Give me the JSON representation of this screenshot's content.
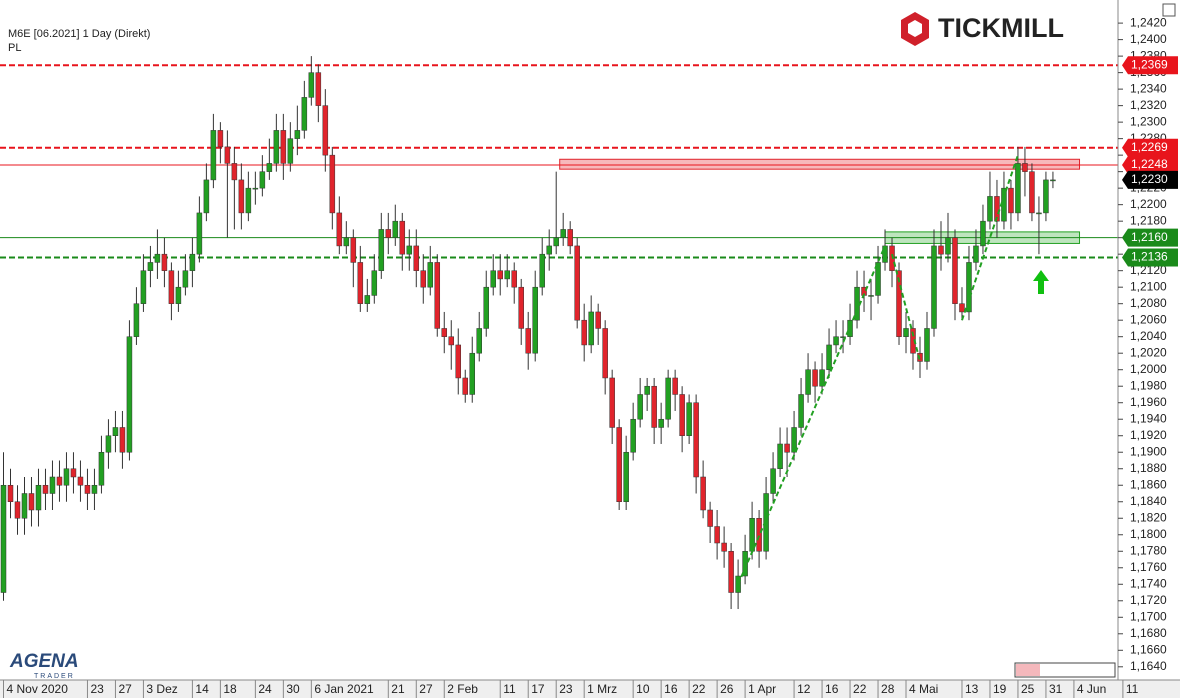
{
  "chart_data": {
    "type": "candlestick",
    "title": "M6E [06.2021] 1 Day (Direkt)",
    "subtitle": "PL",
    "brand": "TICKMILL",
    "logo": "AGENA",
    "logo_sub": "TRADER",
    "up_color": "#22a022",
    "down_color": "#e0242c",
    "xlim": [
      -0.5,
      159.3
    ],
    "ylim": [
      1.1624,
      1.2448
    ],
    "xticks": [
      {
        "value": 0,
        "label": "4 Nov 2020"
      },
      {
        "value": 12,
        "label": "23"
      },
      {
        "value": 16,
        "label": "27"
      },
      {
        "value": 20,
        "label": "3 Dez"
      },
      {
        "value": 27,
        "label": "14"
      },
      {
        "value": 31,
        "label": "18"
      },
      {
        "value": 36,
        "label": "24"
      },
      {
        "value": 40,
        "label": "30"
      },
      {
        "value": 44,
        "label": "6 Jan 2021"
      },
      {
        "value": 55,
        "label": "21"
      },
      {
        "value": 59,
        "label": "27"
      },
      {
        "value": 63,
        "label": "2 Feb"
      },
      {
        "value": 71,
        "label": "11"
      },
      {
        "value": 75,
        "label": "17"
      },
      {
        "value": 79,
        "label": "23"
      },
      {
        "value": 83,
        "label": "1 Mrz"
      },
      {
        "value": 90,
        "label": "10"
      },
      {
        "value": 94,
        "label": "16"
      },
      {
        "value": 98,
        "label": "22"
      },
      {
        "value": 102,
        "label": "26"
      },
      {
        "value": 106,
        "label": "1 Apr"
      },
      {
        "value": 113,
        "label": "12"
      },
      {
        "value": 117,
        "label": "16"
      },
      {
        "value": 121,
        "label": "22"
      },
      {
        "value": 125,
        "label": "28"
      },
      {
        "value": 129,
        "label": "4 Mai"
      },
      {
        "value": 137,
        "label": "13"
      },
      {
        "value": 141,
        "label": "19"
      },
      {
        "value": 145,
        "label": "25"
      },
      {
        "value": 149,
        "label": "31"
      },
      {
        "value": 153,
        "label": "4 Jun"
      },
      {
        "value": 160,
        "label": "11"
      }
    ],
    "yticks": [
      {
        "value": 1.242,
        "label": "1,2420"
      },
      {
        "value": 1.24,
        "label": "1,2400"
      },
      {
        "value": 1.238,
        "label": "1,2380"
      },
      {
        "value": 1.236,
        "label": "1,2360"
      },
      {
        "value": 1.234,
        "label": "1,2340"
      },
      {
        "value": 1.232,
        "label": "1,2320"
      },
      {
        "value": 1.23,
        "label": "1,2300"
      },
      {
        "value": 1.228,
        "label": "1,2280"
      },
      {
        "value": 1.226,
        "label": "1,2260"
      },
      {
        "value": 1.224,
        "label": "1,2240"
      },
      {
        "value": 1.222,
        "label": "1,2220"
      },
      {
        "value": 1.22,
        "label": "1,2200"
      },
      {
        "value": 1.218,
        "label": "1,2180"
      },
      {
        "value": 1.216,
        "label": "1,2160"
      },
      {
        "value": 1.214,
        "label": "1,2140"
      },
      {
        "value": 1.212,
        "label": "1,2120"
      },
      {
        "value": 1.21,
        "label": "1,2100"
      },
      {
        "value": 1.208,
        "label": "1,2080"
      },
      {
        "value": 1.206,
        "label": "1,2060"
      },
      {
        "value": 1.204,
        "label": "1,2040"
      },
      {
        "value": 1.202,
        "label": "1,2020"
      },
      {
        "value": 1.2,
        "label": "1,2000"
      },
      {
        "value": 1.198,
        "label": "1,1980"
      },
      {
        "value": 1.196,
        "label": "1,1960"
      },
      {
        "value": 1.194,
        "label": "1,1940"
      },
      {
        "value": 1.192,
        "label": "1,1920"
      },
      {
        "value": 1.19,
        "label": "1,1900"
      },
      {
        "value": 1.188,
        "label": "1,1880"
      },
      {
        "value": 1.186,
        "label": "1,1860"
      },
      {
        "value": 1.184,
        "label": "1,1840"
      },
      {
        "value": 1.182,
        "label": "1,1820"
      },
      {
        "value": 1.18,
        "label": "1,1800"
      },
      {
        "value": 1.178,
        "label": "1,1780"
      },
      {
        "value": 1.176,
        "label": "1,1760"
      },
      {
        "value": 1.174,
        "label": "1,1740"
      },
      {
        "value": 1.172,
        "label": "1,1720"
      },
      {
        "value": 1.17,
        "label": "1,1700"
      },
      {
        "value": 1.168,
        "label": "1,1680"
      },
      {
        "value": 1.166,
        "label": "1,1660"
      },
      {
        "value": 1.164,
        "label": "1,1640"
      }
    ],
    "levels": [
      {
        "value": 1.2369,
        "label": "1,2369",
        "color": "#e8141c",
        "style": "dashed"
      },
      {
        "value": 1.2269,
        "label": "1,2269",
        "color": "#e8141c",
        "style": "dashed"
      },
      {
        "value": 1.2248,
        "label": "1,2248",
        "color": "#e8141c",
        "style": "solid"
      },
      {
        "value": 1.216,
        "label": "1,2160",
        "color": "#1a8a1a",
        "style": "solid"
      },
      {
        "value": 1.2136,
        "label": "1,2136",
        "color": "#1a8a1a",
        "style": "dashed"
      }
    ],
    "last": {
      "value": 1.223,
      "label": "1,2230",
      "color": "#000000"
    },
    "zones": [
      {
        "x": [
          79.5,
          153.8
        ],
        "y": [
          1.2243,
          1.2255
        ],
        "color": "#f4a0a4",
        "stroke": "#e0242c"
      },
      {
        "x": [
          126,
          153.8
        ],
        "y": [
          1.2153,
          1.2167
        ],
        "color": "#a8dca8",
        "stroke": "#22a022"
      }
    ],
    "trendlines": [
      {
        "x": [
          105,
          126
        ],
        "y": [
          1.174,
          1.215
        ],
        "color": "#22a022"
      },
      {
        "x": [
          127,
          131
        ],
        "y": [
          1.214,
          1.201
        ],
        "color": "#22a022"
      },
      {
        "x": [
          137,
          145
        ],
        "y": [
          1.206,
          1.226
        ],
        "color": "#22a022"
      }
    ],
    "candles": [
      [
        1.173,
        1.19,
        1.172,
        1.186
      ],
      [
        1.186,
        1.188,
        1.182,
        1.184
      ],
      [
        1.184,
        1.186,
        1.18,
        1.182
      ],
      [
        1.182,
        1.187,
        1.18,
        1.185
      ],
      [
        1.185,
        1.187,
        1.181,
        1.183
      ],
      [
        1.183,
        1.188,
        1.181,
        1.186
      ],
      [
        1.186,
        1.188,
        1.183,
        1.185
      ],
      [
        1.185,
        1.189,
        1.183,
        1.187
      ],
      [
        1.187,
        1.189,
        1.184,
        1.186
      ],
      [
        1.186,
        1.19,
        1.184,
        1.188
      ],
      [
        1.188,
        1.19,
        1.185,
        1.187
      ],
      [
        1.187,
        1.189,
        1.184,
        1.186
      ],
      [
        1.186,
        1.188,
        1.183,
        1.185
      ],
      [
        1.185,
        1.188,
        1.183,
        1.186
      ],
      [
        1.186,
        1.192,
        1.185,
        1.19
      ],
      [
        1.19,
        1.194,
        1.188,
        1.192
      ],
      [
        1.192,
        1.195,
        1.19,
        1.193
      ],
      [
        1.193,
        1.195,
        1.188,
        1.19
      ],
      [
        1.19,
        1.206,
        1.189,
        1.204
      ],
      [
        1.204,
        1.21,
        1.203,
        1.208
      ],
      [
        1.208,
        1.214,
        1.207,
        1.212
      ],
      [
        1.212,
        1.215,
        1.21,
        1.213
      ],
      [
        1.213,
        1.217,
        1.211,
        1.214
      ],
      [
        1.214,
        1.216,
        1.21,
        1.212
      ],
      [
        1.212,
        1.213,
        1.206,
        1.208
      ],
      [
        1.208,
        1.212,
        1.207,
        1.21
      ],
      [
        1.21,
        1.214,
        1.209,
        1.212
      ],
      [
        1.212,
        1.216,
        1.21,
        1.214
      ],
      [
        1.214,
        1.221,
        1.213,
        1.219
      ],
      [
        1.219,
        1.225,
        1.218,
        1.223
      ],
      [
        1.223,
        1.231,
        1.222,
        1.229
      ],
      [
        1.229,
        1.23,
        1.225,
        1.227
      ],
      [
        1.227,
        1.229,
        1.216,
        1.225
      ],
      [
        1.225,
        1.227,
        1.217,
        1.223
      ],
      [
        1.223,
        1.225,
        1.217,
        1.219
      ],
      [
        1.219,
        1.224,
        1.218,
        1.222
      ],
      [
        1.222,
        1.224,
        1.22,
        1.222
      ],
      [
        1.222,
        1.226,
        1.221,
        1.224
      ],
      [
        1.224,
        1.228,
        1.223,
        1.225
      ],
      [
        1.225,
        1.231,
        1.224,
        1.229
      ],
      [
        1.229,
        1.231,
        1.223,
        1.225
      ],
      [
        1.225,
        1.23,
        1.224,
        1.228
      ],
      [
        1.228,
        1.232,
        1.226,
        1.229
      ],
      [
        1.229,
        1.235,
        1.228,
        1.233
      ],
      [
        1.233,
        1.238,
        1.232,
        1.236
      ],
      [
        1.236,
        1.237,
        1.23,
        1.232
      ],
      [
        1.232,
        1.234,
        1.224,
        1.226
      ],
      [
        1.226,
        1.227,
        1.217,
        1.219
      ],
      [
        1.219,
        1.221,
        1.214,
        1.215
      ],
      [
        1.215,
        1.218,
        1.214,
        1.216
      ],
      [
        1.216,
        1.217,
        1.21,
        1.213
      ],
      [
        1.213,
        1.215,
        1.207,
        1.208
      ],
      [
        1.208,
        1.211,
        1.207,
        1.209
      ],
      [
        1.209,
        1.214,
        1.208,
        1.212
      ],
      [
        1.212,
        1.219,
        1.211,
        1.217
      ],
      [
        1.217,
        1.219,
        1.214,
        1.216
      ],
      [
        1.216,
        1.22,
        1.215,
        1.218
      ],
      [
        1.218,
        1.219,
        1.212,
        1.214
      ],
      [
        1.214,
        1.217,
        1.212,
        1.215
      ],
      [
        1.215,
        1.217,
        1.21,
        1.212
      ],
      [
        1.212,
        1.214,
        1.208,
        1.21
      ],
      [
        1.21,
        1.215,
        1.209,
        1.213
      ],
      [
        1.213,
        1.214,
        1.204,
        1.205
      ],
      [
        1.205,
        1.207,
        1.202,
        1.204
      ],
      [
        1.204,
        1.206,
        1.2,
        1.203
      ],
      [
        1.203,
        1.205,
        1.197,
        1.199
      ],
      [
        1.199,
        1.2,
        1.196,
        1.197
      ],
      [
        1.197,
        1.204,
        1.196,
        1.202
      ],
      [
        1.202,
        1.207,
        1.201,
        1.205
      ],
      [
        1.205,
        1.212,
        1.204,
        1.21
      ],
      [
        1.21,
        1.214,
        1.209,
        1.212
      ],
      [
        1.212,
        1.214,
        1.209,
        1.211
      ],
      [
        1.211,
        1.214,
        1.21,
        1.212
      ],
      [
        1.212,
        1.213,
        1.208,
        1.21
      ],
      [
        1.21,
        1.211,
        1.203,
        1.205
      ],
      [
        1.205,
        1.207,
        1.2,
        1.202
      ],
      [
        1.202,
        1.212,
        1.201,
        1.21
      ],
      [
        1.21,
        1.216,
        1.209,
        1.214
      ],
      [
        1.214,
        1.217,
        1.212,
        1.215
      ],
      [
        1.215,
        1.224,
        1.214,
        1.216
      ],
      [
        1.216,
        1.219,
        1.215,
        1.217
      ],
      [
        1.217,
        1.218,
        1.214,
        1.215
      ],
      [
        1.215,
        1.216,
        1.205,
        1.206
      ],
      [
        1.206,
        1.208,
        1.201,
        1.203
      ],
      [
        1.203,
        1.209,
        1.202,
        1.207
      ],
      [
        1.207,
        1.208,
        1.203,
        1.205
      ],
      [
        1.205,
        1.206,
        1.197,
        1.199
      ],
      [
        1.199,
        1.2,
        1.191,
        1.193
      ],
      [
        1.193,
        1.194,
        1.183,
        1.184
      ],
      [
        1.184,
        1.192,
        1.183,
        1.19
      ],
      [
        1.19,
        1.196,
        1.189,
        1.194
      ],
      [
        1.194,
        1.199,
        1.193,
        1.197
      ],
      [
        1.197,
        1.199,
        1.195,
        1.198
      ],
      [
        1.198,
        1.199,
        1.191,
        1.193
      ],
      [
        1.193,
        1.196,
        1.191,
        1.194
      ],
      [
        1.194,
        1.2,
        1.193,
        1.199
      ],
      [
        1.199,
        1.2,
        1.195,
        1.197
      ],
      [
        1.197,
        1.198,
        1.19,
        1.192
      ],
      [
        1.192,
        1.197,
        1.191,
        1.196
      ],
      [
        1.196,
        1.197,
        1.185,
        1.187
      ],
      [
        1.187,
        1.189,
        1.182,
        1.183
      ],
      [
        1.183,
        1.184,
        1.179,
        1.181
      ],
      [
        1.181,
        1.183,
        1.177,
        1.179
      ],
      [
        1.179,
        1.181,
        1.176,
        1.178
      ],
      [
        1.178,
        1.179,
        1.171,
        1.173
      ],
      [
        1.173,
        1.177,
        1.171,
        1.175
      ],
      [
        1.175,
        1.18,
        1.174,
        1.178
      ],
      [
        1.178,
        1.184,
        1.177,
        1.182
      ],
      [
        1.182,
        1.183,
        1.176,
        1.178
      ],
      [
        1.178,
        1.187,
        1.177,
        1.185
      ],
      [
        1.185,
        1.19,
        1.184,
        1.188
      ],
      [
        1.188,
        1.193,
        1.187,
        1.191
      ],
      [
        1.191,
        1.193,
        1.187,
        1.19
      ],
      [
        1.19,
        1.195,
        1.189,
        1.193
      ],
      [
        1.193,
        1.199,
        1.192,
        1.197
      ],
      [
        1.197,
        1.202,
        1.196,
        1.2
      ],
      [
        1.2,
        1.201,
        1.196,
        1.198
      ],
      [
        1.198,
        1.202,
        1.197,
        1.2
      ],
      [
        1.2,
        1.205,
        1.199,
        1.203
      ],
      [
        1.203,
        1.206,
        1.202,
        1.204
      ],
      [
        1.204,
        1.206,
        1.202,
        1.204
      ],
      [
        1.204,
        1.208,
        1.203,
        1.206
      ],
      [
        1.206,
        1.212,
        1.205,
        1.21
      ],
      [
        1.21,
        1.212,
        1.207,
        1.209
      ],
      [
        1.209,
        1.211,
        1.206,
        1.209
      ],
      [
        1.209,
        1.215,
        1.208,
        1.213
      ],
      [
        1.213,
        1.217,
        1.212,
        1.215
      ],
      [
        1.215,
        1.216,
        1.21,
        1.212
      ],
      [
        1.212,
        1.213,
        1.203,
        1.204
      ],
      [
        1.204,
        1.207,
        1.202,
        1.205
      ],
      [
        1.205,
        1.206,
        1.2,
        1.202
      ],
      [
        1.202,
        1.204,
        1.199,
        1.201
      ],
      [
        1.201,
        1.207,
        1.2,
        1.205
      ],
      [
        1.205,
        1.217,
        1.204,
        1.215
      ],
      [
        1.215,
        1.218,
        1.212,
        1.214
      ],
      [
        1.214,
        1.219,
        1.213,
        1.216
      ],
      [
        1.216,
        1.217,
        1.206,
        1.208
      ],
      [
        1.208,
        1.21,
        1.206,
        1.207
      ],
      [
        1.207,
        1.215,
        1.206,
        1.213
      ],
      [
        1.213,
        1.217,
        1.212,
        1.215
      ],
      [
        1.215,
        1.22,
        1.214,
        1.218
      ],
      [
        1.218,
        1.224,
        1.217,
        1.221
      ],
      [
        1.221,
        1.223,
        1.216,
        1.218
      ],
      [
        1.218,
        1.224,
        1.217,
        1.222
      ],
      [
        1.222,
        1.223,
        1.217,
        1.219
      ],
      [
        1.219,
        1.227,
        1.218,
        1.225
      ],
      [
        1.225,
        1.227,
        1.221,
        1.224
      ],
      [
        1.224,
        1.225,
        1.218,
        1.219
      ],
      [
        1.219,
        1.221,
        1.214,
        1.219
      ],
      [
        1.219,
        1.224,
        1.218,
        1.223
      ],
      [
        1.223,
        1.224,
        1.222,
        1.223
      ]
    ]
  }
}
